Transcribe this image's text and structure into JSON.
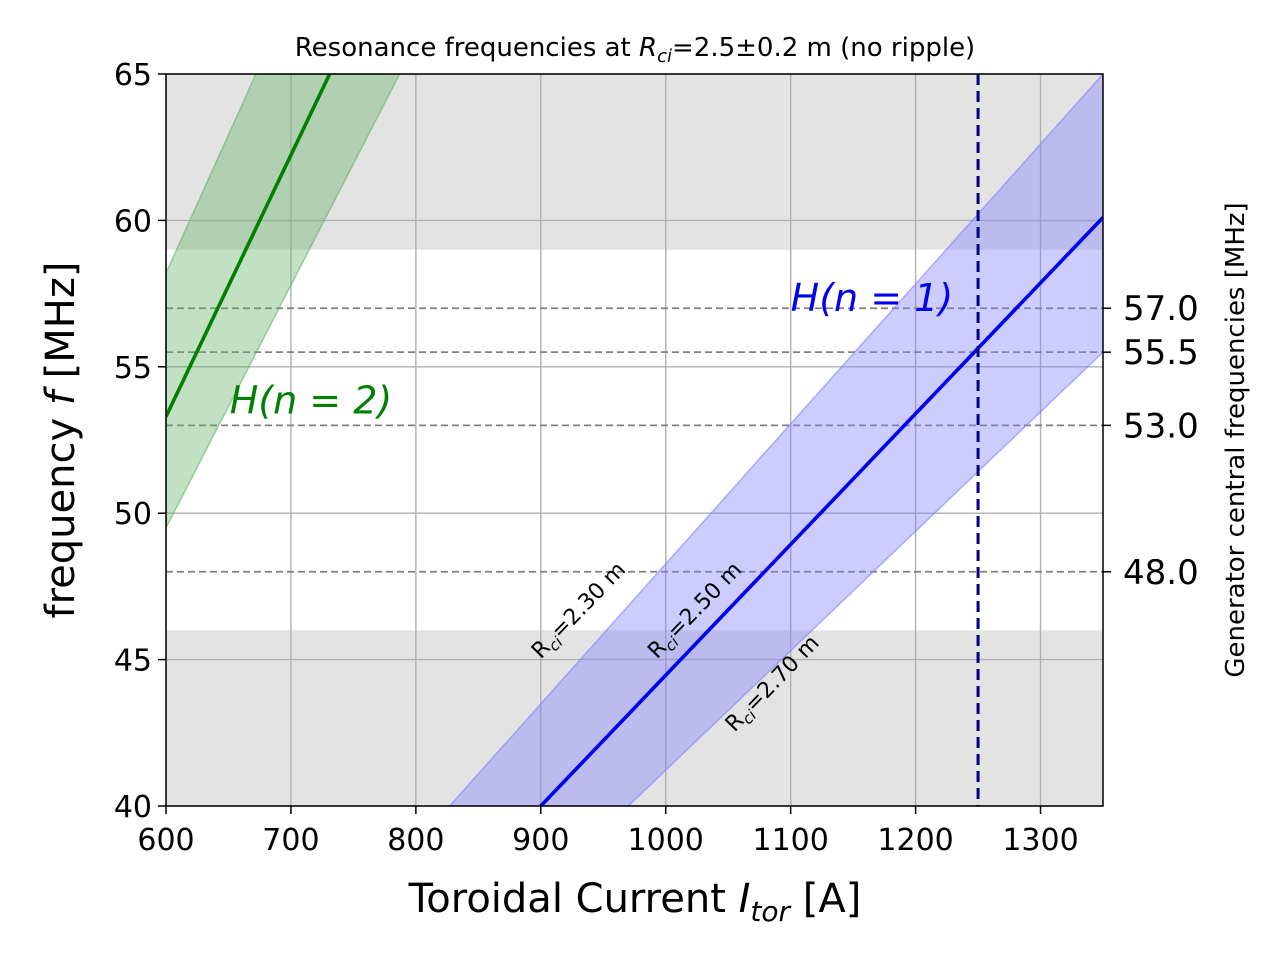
{
  "chart_data": {
    "type": "line",
    "title_pre": "Resonance frequencies at ",
    "title_var": "R",
    "title_sub": "ci",
    "title_post": "=2.5±0.2 m (no ripple)",
    "xlabel_pre": "Toroidal Current ",
    "xlabel_var": "I",
    "xlabel_sub": "tor",
    "xlabel_post": " [A]",
    "ylabel_pre": "frequency ",
    "ylabel_var": "f",
    "ylabel_post": " [MHz]",
    "y2label": "Generator central frequencies [MHz]",
    "xlim": [
      600,
      1350
    ],
    "ylim": [
      40,
      65
    ],
    "xticks": [
      "600",
      "700",
      "800",
      "900",
      "1000",
      "1100",
      "1200",
      "1300"
    ],
    "yticks": [
      "40",
      "45",
      "50",
      "55",
      "60",
      "65"
    ],
    "grid": true,
    "gray_bands": [
      {
        "y": [
          59,
          65
        ]
      },
      {
        "y": [
          40,
          46
        ]
      }
    ],
    "generator_frequencies": [
      {
        "value": 57.0,
        "label": "57.0"
      },
      {
        "value": 55.5,
        "label": "55.5"
      },
      {
        "value": 53.0,
        "label": "53.0"
      },
      {
        "value": 48.0,
        "label": "48.0"
      }
    ],
    "vertical_line_x": 1250,
    "series": [
      {
        "name_var": "H",
        "name_arg": "(n = 1)",
        "color": "#0000ee",
        "band_color": "#8080ff",
        "center": {
          "x": [
            900,
            1350
          ],
          "y": [
            40.0,
            60.1
          ]
        },
        "lower": {
          "x": [
            970,
            1350
          ],
          "y": [
            40.0,
            55.5
          ]
        },
        "upper": {
          "x": [
            827,
            1350
          ],
          "y": [
            40.0,
            65.0
          ]
        },
        "label_pos": {
          "x": 1100,
          "y": 56.9
        },
        "radius_labels": [
          {
            "text_pre": "R",
            "text_sub": "ci",
            "text_post": "=2.30 m",
            "x": 900,
            "y": 45.0
          },
          {
            "text_pre": "R",
            "text_sub": "ci",
            "text_post": "=2.50 m",
            "x": 993,
            "y": 45.0
          },
          {
            "text_pre": "R",
            "text_sub": "ci",
            "text_post": "=2.70 m",
            "x": 1055,
            "y": 42.5
          }
        ]
      },
      {
        "name_var": "H",
        "name_arg": "(n = 2)",
        "color": "#008000",
        "band_color": "#66b366",
        "center": {
          "x": [
            600,
            731
          ],
          "y": [
            53.3,
            65.0
          ]
        },
        "lower": {
          "x": [
            600,
            787
          ],
          "y": [
            49.5,
            65.0
          ]
        },
        "upper": {
          "x": [
            600,
            672
          ],
          "y": [
            58.2,
            65.0
          ]
        },
        "label_pos": {
          "x": 651,
          "y": 53.4
        }
      }
    ]
  }
}
